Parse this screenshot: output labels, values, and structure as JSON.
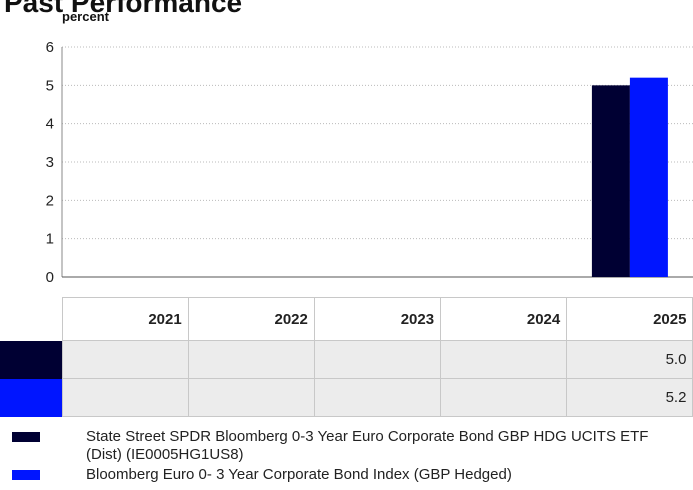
{
  "chart_data": {
    "type": "bar",
    "title": "Past Performance",
    "y_label": "percent",
    "categories": [
      "2021",
      "2022",
      "2023",
      "2024",
      "2025"
    ],
    "series": [
      {
        "name": "State Street SPDR Bloomberg 0-3 Year Euro Corporate Bond GBP HDG UCITS ETF (Dist) (IE0005HG1US8)",
        "color": "#000033",
        "values": [
          null,
          null,
          null,
          null,
          5
        ],
        "value_labels": [
          null,
          null,
          null,
          null,
          "5.0"
        ]
      },
      {
        "name": "Bloomberg Euro 0- 3 Year Corporate Bond Index (GBP Hedged)",
        "color": "#0015ff",
        "values": [
          null,
          null,
          null,
          null,
          5.2
        ],
        "value_labels": [
          null,
          null,
          null,
          null,
          "5.2"
        ]
      }
    ],
    "ylim": [
      0,
      6
    ],
    "yticks": [
      0,
      1,
      2,
      3,
      4,
      5,
      6
    ],
    "grid": true
  }
}
